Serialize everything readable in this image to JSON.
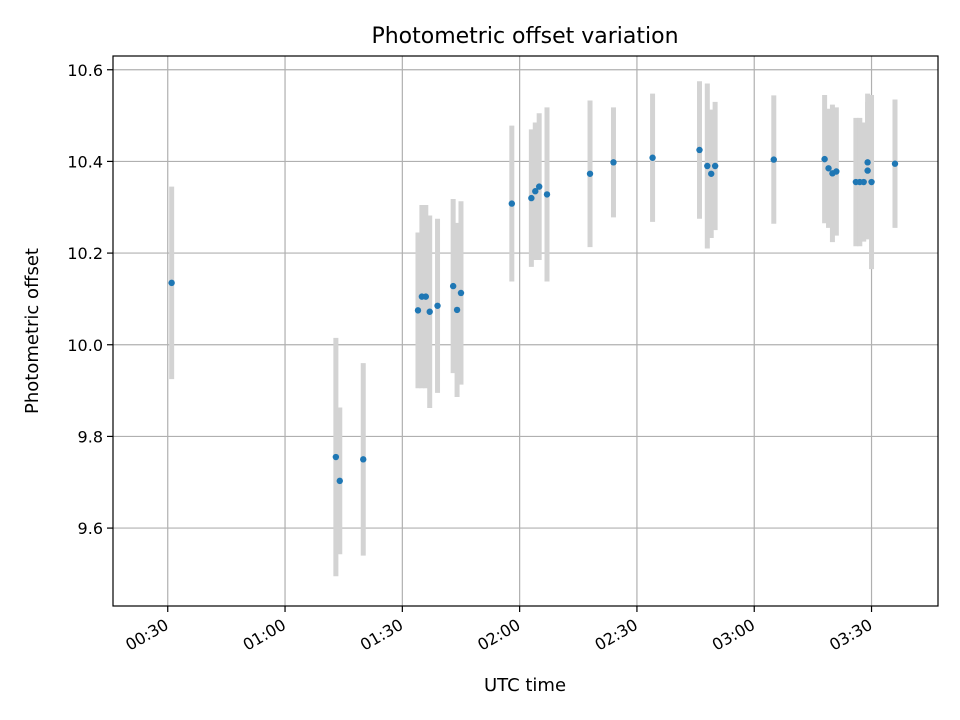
{
  "chart_data": {
    "type": "scatter",
    "title": "Photometric offset variation",
    "xlabel": "UTC time",
    "ylabel": "Photometric offset",
    "grid": true,
    "point_color": "#1f77b4",
    "errorbar_color": "#d3d3d3",
    "xlim": [
      "00:16",
      "03:47"
    ],
    "ylim": [
      9.43,
      10.63
    ],
    "x_ticks": [
      "00:30",
      "01:00",
      "01:30",
      "02:00",
      "02:30",
      "03:00",
      "03:30"
    ],
    "y_ticks": [
      "9.6",
      "9.8",
      "10.0",
      "10.2",
      "10.4",
      "10.6"
    ],
    "points": [
      {
        "t": "00:31",
        "y": 10.135,
        "err": 0.21
      },
      {
        "t": "01:13",
        "y": 9.755,
        "err": 0.26
      },
      {
        "t": "01:14",
        "y": 9.703,
        "err": 0.16
      },
      {
        "t": "01:20",
        "y": 9.75,
        "err": 0.21
      },
      {
        "t": "01:34",
        "y": 10.075,
        "err": 0.17
      },
      {
        "t": "01:35",
        "y": 10.105,
        "err": 0.2
      },
      {
        "t": "01:36",
        "y": 10.105,
        "err": 0.2
      },
      {
        "t": "01:37",
        "y": 10.072,
        "err": 0.21
      },
      {
        "t": "01:39",
        "y": 10.085,
        "err": 0.19
      },
      {
        "t": "01:43",
        "y": 10.128,
        "err": 0.19
      },
      {
        "t": "01:44",
        "y": 10.076,
        "err": 0.19
      },
      {
        "t": "01:45",
        "y": 10.113,
        "err": 0.2
      },
      {
        "t": "01:58",
        "y": 10.308,
        "err": 0.17
      },
      {
        "t": "02:03",
        "y": 10.32,
        "err": 0.15
      },
      {
        "t": "02:04",
        "y": 10.335,
        "err": 0.15
      },
      {
        "t": "02:05",
        "y": 10.345,
        "err": 0.16
      },
      {
        "t": "02:07",
        "y": 10.328,
        "err": 0.19
      },
      {
        "t": "02:18",
        "y": 10.373,
        "err": 0.16
      },
      {
        "t": "02:24",
        "y": 10.398,
        "err": 0.12
      },
      {
        "t": "02:34",
        "y": 10.408,
        "err": 0.14
      },
      {
        "t": "02:46",
        "y": 10.425,
        "err": 0.15
      },
      {
        "t": "02:48",
        "y": 10.39,
        "err": 0.18
      },
      {
        "t": "02:49",
        "y": 10.373,
        "err": 0.14
      },
      {
        "t": "02:50",
        "y": 10.39,
        "err": 0.14
      },
      {
        "t": "03:05",
        "y": 10.404,
        "err": 0.14
      },
      {
        "t": "03:18",
        "y": 10.405,
        "err": 0.14
      },
      {
        "t": "03:19",
        "y": 10.385,
        "err": 0.13
      },
      {
        "t": "03:20",
        "y": 10.374,
        "err": 0.15
      },
      {
        "t": "03:21",
        "y": 10.378,
        "err": 0.14
      },
      {
        "t": "03:26",
        "y": 10.355,
        "err": 0.14
      },
      {
        "t": "03:27",
        "y": 10.355,
        "err": 0.14
      },
      {
        "t": "03:28",
        "y": 10.355,
        "err": 0.13
      },
      {
        "t": "03:29",
        "y": 10.38,
        "err": 0.15
      },
      {
        "t": "03:29",
        "y": 10.398,
        "err": 0.15
      },
      {
        "t": "03:30",
        "y": 10.355,
        "err": 0.19
      },
      {
        "t": "03:36",
        "y": 10.395,
        "err": 0.14
      }
    ]
  }
}
